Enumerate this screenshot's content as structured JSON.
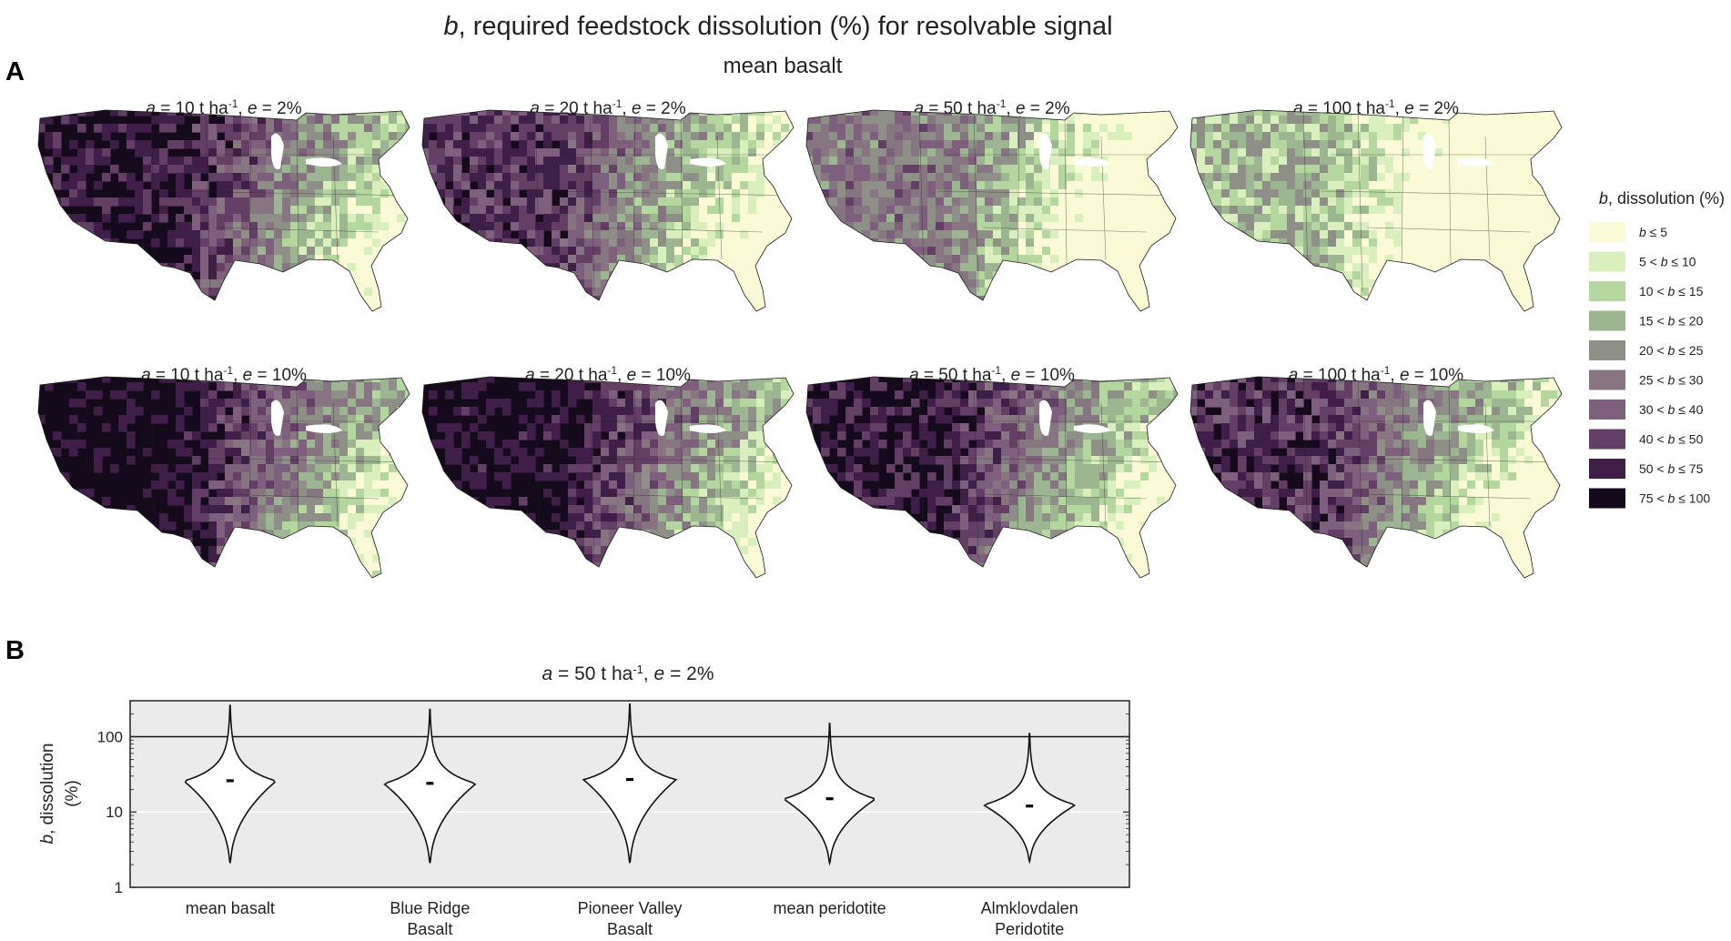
{
  "figure": {
    "title_var": "b",
    "title_rest": ", required feedstock dissolution (%) for resolvable signal",
    "subtitle": "mean basalt",
    "panel_a_label": "A",
    "panel_b_label": "B"
  },
  "maps": [
    {
      "a": "10",
      "e": "2%",
      "level": 0.92
    },
    {
      "a": "20",
      "e": "2%",
      "level": 0.78
    },
    {
      "a": "50",
      "e": "2%",
      "level": 0.55
    },
    {
      "a": "100",
      "e": "2%",
      "level": 0.32
    },
    {
      "a": "10",
      "e": "10%",
      "level": 0.99
    },
    {
      "a": "20",
      "e": "10%",
      "level": 0.97
    },
    {
      "a": "50",
      "e": "10%",
      "level": 0.9
    },
    {
      "a": "100",
      "e": "10%",
      "level": 0.8
    }
  ],
  "legend": {
    "title_var": "b",
    "title_rest": ", dissolution (%)",
    "items": [
      {
        "label": "b ≤ 5",
        "color": "#fbfad6"
      },
      {
        "label": "5 < b ≤ 10",
        "color": "#d9efbd"
      },
      {
        "label": "10 < b ≤ 15",
        "color": "#b4d79f"
      },
      {
        "label": "15 < b ≤ 20",
        "color": "#9cb692"
      },
      {
        "label": "20 < b ≤ 25",
        "color": "#8e8f87"
      },
      {
        "label": "25 < b ≤ 30",
        "color": "#877682"
      },
      {
        "label": "30 < b ≤ 40",
        "color": "#7e5f7d"
      },
      {
        "label": "40 < b ≤ 50",
        "color": "#633f66"
      },
      {
        "label": "50 < b ≤ 75",
        "color": "#3f1f47"
      },
      {
        "label": "75 < b ≤ 100",
        "color": "#150a1c"
      }
    ]
  },
  "chart_data": {
    "type": "violin",
    "title": "a = 50 t ha-1, e = 2%",
    "ylabel_var": "b",
    "ylabel_rest": ", dissolution",
    "ylabel_unit": "(%)",
    "yscale": "log",
    "ylim": [
      1,
      300
    ],
    "yticks": [
      1,
      10,
      100
    ],
    "reference_line": 100,
    "grid": true,
    "categories": [
      [
        "mean basalt"
      ],
      [
        "Blue Ridge",
        "Basalt"
      ],
      [
        "Pioneer Valley",
        "Basalt"
      ],
      [
        "mean peridotite"
      ],
      [
        "Almklovdalen",
        "Peridotite"
      ]
    ],
    "series": [
      {
        "median": 26,
        "min": 2.1,
        "max": 260,
        "mode": 26
      },
      {
        "median": 24,
        "min": 2.1,
        "max": 230,
        "mode": 24
      },
      {
        "median": 27,
        "min": 2.1,
        "max": 270,
        "mode": 27
      },
      {
        "median": 15,
        "min": 2.1,
        "max": 150,
        "mode": 15
      },
      {
        "median": 12,
        "min": 2.2,
        "max": 110,
        "mode": 12.5
      }
    ]
  }
}
